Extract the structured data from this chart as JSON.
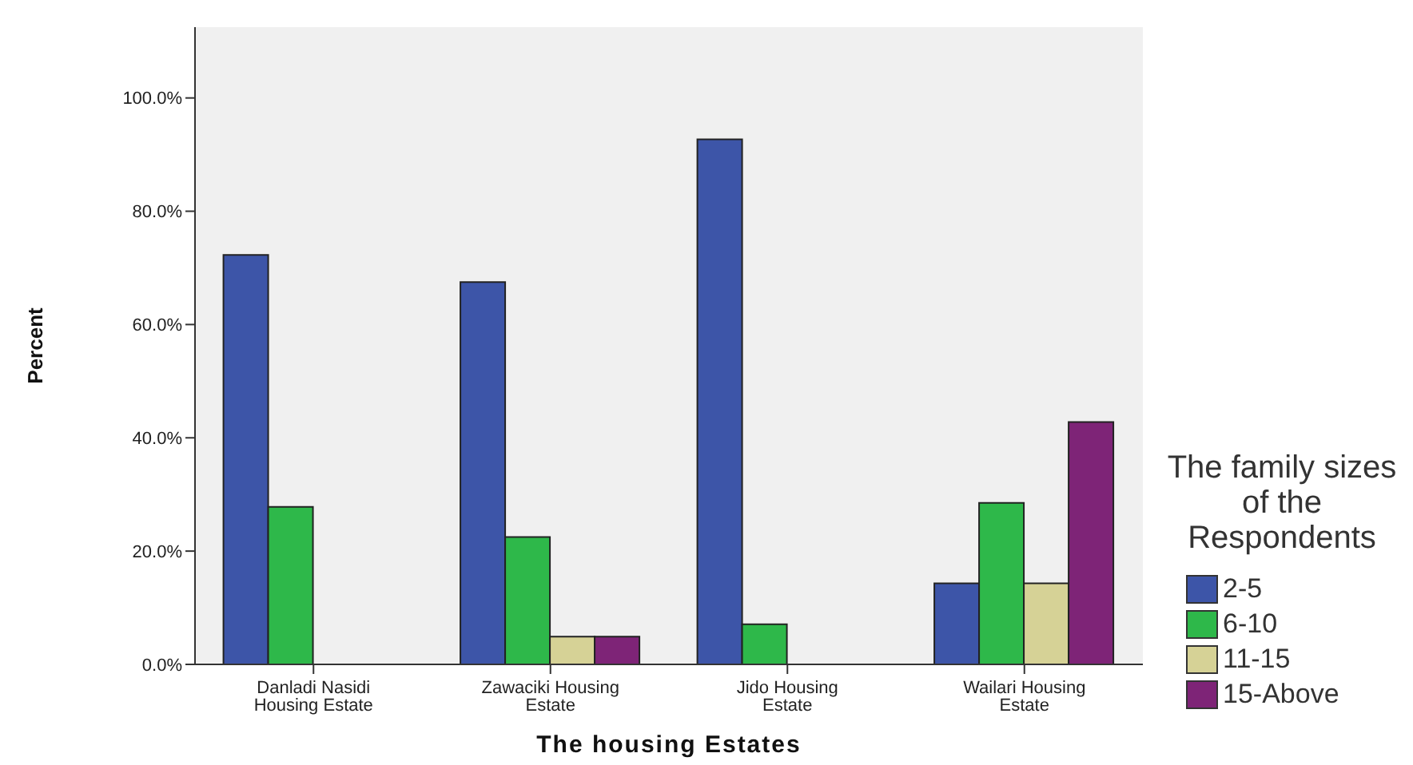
{
  "chart_data": {
    "type": "bar",
    "xlabel": "The housing Estates",
    "ylabel": "Percent",
    "legend_title": "The family sizes of the Respondents",
    "categories": [
      "Danladi Nasidi Housing Estate",
      "Zawaciki Housing Estate",
      "Jido Housing Estate",
      "Wailari Housing Estate"
    ],
    "series": [
      {
        "name": "2-5",
        "color": "#3d55a8",
        "values": [
          72.3,
          67.5,
          92.7,
          14.3
        ]
      },
      {
        "name": "6-10",
        "color": "#2eb84a",
        "values": [
          27.8,
          22.5,
          7.1,
          28.5
        ]
      },
      {
        "name": "11-15",
        "color": "#d6d296",
        "values": [
          null,
          4.9,
          null,
          14.3
        ]
      },
      {
        "name": "15-Above",
        "color": "#7e2477",
        "values": [
          null,
          4.9,
          null,
          42.8
        ]
      }
    ],
    "ylim": [
      0,
      112.5
    ],
    "yticks": [
      {
        "value": 0,
        "label": "0.0%"
      },
      {
        "value": 20,
        "label": "20.0%"
      },
      {
        "value": 40,
        "label": "40.0%"
      },
      {
        "value": 60,
        "label": "60.0%"
      },
      {
        "value": 80,
        "label": "80.0%"
      },
      {
        "value": 100,
        "label": "100.0%"
      }
    ],
    "grid": false,
    "legend": "right"
  }
}
